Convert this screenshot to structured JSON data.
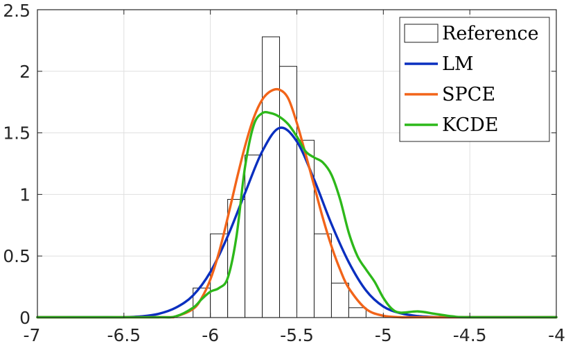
{
  "chart_data": {
    "type": "histogram+line",
    "title": "",
    "xlabel": "",
    "ylabel": "",
    "xlim": [
      -7,
      -4
    ],
    "ylim": [
      0,
      2.5
    ],
    "xticks": [
      -7,
      -6.5,
      -6,
      -5.5,
      -5,
      -4.5,
      -4
    ],
    "xtick_labels": [
      "-7",
      "-6.5",
      "-6",
      "-5.5",
      "-5",
      "-4.5",
      "-4"
    ],
    "yticks": [
      0,
      0.5,
      1,
      1.5,
      2,
      2.5
    ],
    "ytick_labels": [
      "0",
      "0.5",
      "1",
      "1.5",
      "2",
      "2.5"
    ],
    "grid": true,
    "legend_position": "top-right",
    "histogram": {
      "name": "Reference",
      "bin_edges": [
        -6.1,
        -6.0,
        -5.9,
        -5.8,
        -5.7,
        -5.6,
        -5.5,
        -5.4,
        -5.3,
        -5.2,
        -5.1
      ],
      "heights": [
        0.24,
        0.68,
        0.96,
        1.32,
        2.28,
        2.04,
        1.44,
        0.68,
        0.28,
        0.08
      ]
    },
    "series": [
      {
        "name": "LM",
        "color": "#0a2fbf",
        "x": [
          -7,
          -6.6,
          -6.5,
          -6.4,
          -6.3,
          -6.2,
          -6.1,
          -6.0,
          -5.9,
          -5.8,
          -5.7,
          -5.6,
          -5.5,
          -5.4,
          -5.3,
          -5.2,
          -5.1,
          -5.0,
          -4.9,
          -4.8,
          -4.7,
          -4.6,
          -4.5,
          -4.0
        ],
        "y": [
          0,
          0,
          0.003,
          0.01,
          0.03,
          0.08,
          0.18,
          0.37,
          0.66,
          1.01,
          1.35,
          1.54,
          1.43,
          1.12,
          0.76,
          0.45,
          0.22,
          0.09,
          0.035,
          0.012,
          0.004,
          0.001,
          0,
          0
        ]
      },
      {
        "name": "SPCE",
        "color": "#f26419",
        "x": [
          -7,
          -6.3,
          -6.2,
          -6.1,
          -6.05,
          -6.0,
          -5.95,
          -5.9,
          -5.85,
          -5.8,
          -5.75,
          -5.7,
          -5.65,
          -5.6,
          -5.55,
          -5.5,
          -5.45,
          -5.4,
          -5.35,
          -5.3,
          -5.25,
          -5.2,
          -5.1,
          -5.0,
          -4.9,
          -4.8,
          -4.0
        ],
        "y": [
          0,
          0,
          0.01,
          0.07,
          0.16,
          0.31,
          0.53,
          0.81,
          1.11,
          1.39,
          1.62,
          1.77,
          1.84,
          1.85,
          1.78,
          1.58,
          1.33,
          1.07,
          0.81,
          0.58,
          0.39,
          0.24,
          0.07,
          0.015,
          0.002,
          0,
          0
        ]
      },
      {
        "name": "KCDE",
        "color": "#2db81a",
        "x": [
          -7,
          -6.5,
          -6.3,
          -6.2,
          -6.1,
          -6.05,
          -6.0,
          -5.95,
          -5.9,
          -5.85,
          -5.8,
          -5.75,
          -5.7,
          -5.65,
          -5.6,
          -5.55,
          -5.5,
          -5.45,
          -5.4,
          -5.35,
          -5.3,
          -5.25,
          -5.2,
          -5.15,
          -5.1,
          -5.05,
          -5.0,
          -4.95,
          -4.9,
          -4.8,
          -4.7,
          -4.6,
          -4.5,
          -4.0
        ],
        "y": [
          0,
          0,
          0.001,
          0.01,
          0.08,
          0.15,
          0.21,
          0.24,
          0.32,
          0.65,
          1.22,
          1.56,
          1.66,
          1.66,
          1.63,
          1.57,
          1.47,
          1.35,
          1.3,
          1.26,
          1.16,
          0.96,
          0.69,
          0.5,
          0.39,
          0.29,
          0.16,
          0.07,
          0.04,
          0.05,
          0.03,
          0.01,
          0.001,
          0
        ]
      }
    ]
  }
}
